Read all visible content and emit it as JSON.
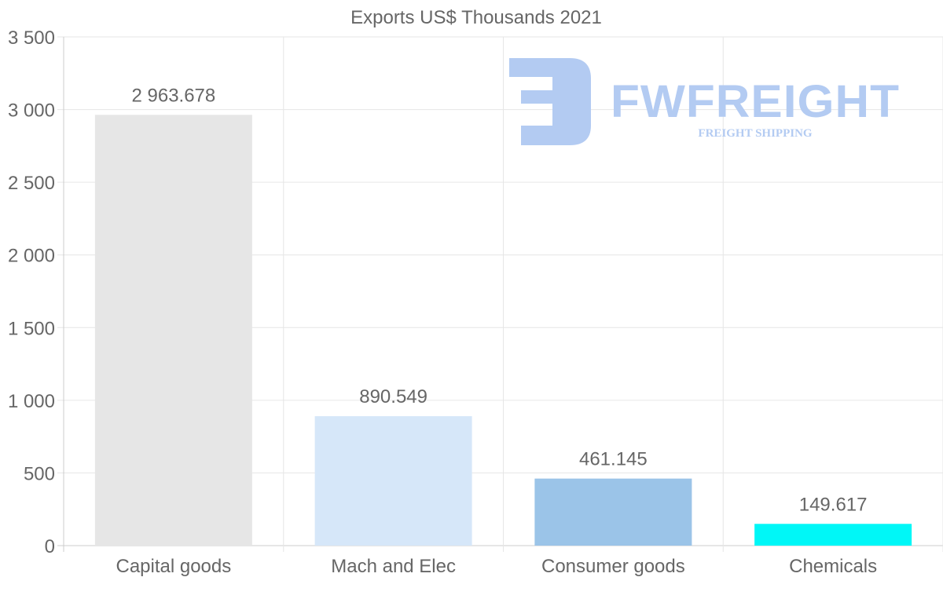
{
  "chart_data": {
    "type": "bar",
    "title": "Exports US$ Thousands 2021",
    "categories": [
      "Capital goods",
      "Mach and Elec",
      "Consumer goods",
      "Chemicals"
    ],
    "values": [
      2963.678,
      890.549,
      461.145,
      149.617
    ],
    "value_labels": [
      "2 963.678",
      "890.549",
      "461.145",
      "149.617"
    ],
    "colors": [
      "#e6e6e6",
      "#d6e7f9",
      "#9bc4e8",
      "#00f7f7"
    ],
    "xlabel": "",
    "ylabel": "",
    "ylim": [
      0,
      3500
    ],
    "yticks": [
      0,
      500,
      1000,
      1500,
      2000,
      2500,
      3000,
      3500
    ],
    "ytick_labels": [
      "0",
      "500",
      "1 000",
      "1 500",
      "2 000",
      "2 500",
      "3 000",
      "3 500"
    ],
    "grid": true,
    "legend": "none"
  },
  "watermark": {
    "brand": "FWFREIGHT",
    "tagline": "FREIGHT SHIPPING",
    "color": "#b3cbf2"
  }
}
